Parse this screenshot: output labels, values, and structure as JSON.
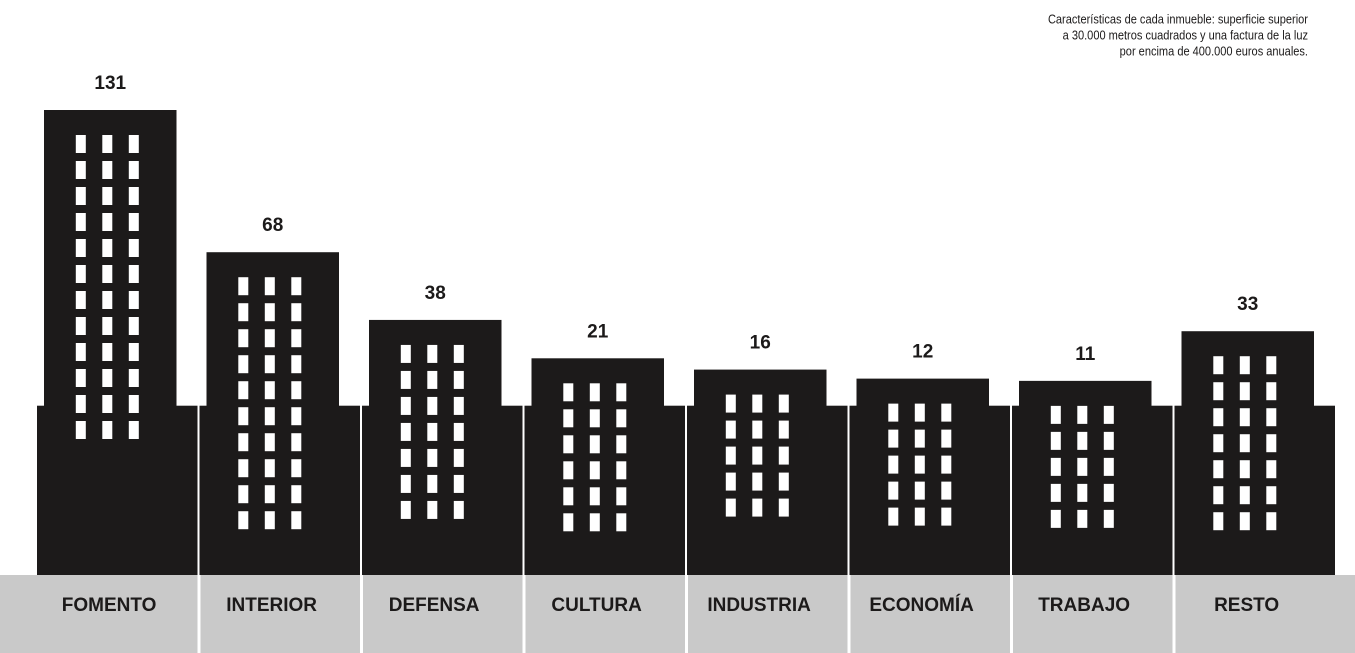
{
  "chart_data": {
    "type": "bar",
    "annotation": [
      "Características de cada inmueble: superficie superior",
      "a 30.000 metros cuadrados y una factura de la luz",
      "por encima de 400.000 euros anuales."
    ],
    "categories": [
      "FOMENTO",
      "INTERIOR",
      "DEFENSA",
      "CULTURA",
      "INDUSTRIA",
      "ECONOMÍA",
      "TRABAJO",
      "RESTO"
    ],
    "values": [
      131,
      68,
      38,
      21,
      16,
      12,
      11,
      33
    ],
    "color": "#1c1a1a",
    "ylim": [
      -75,
      131
    ]
  }
}
